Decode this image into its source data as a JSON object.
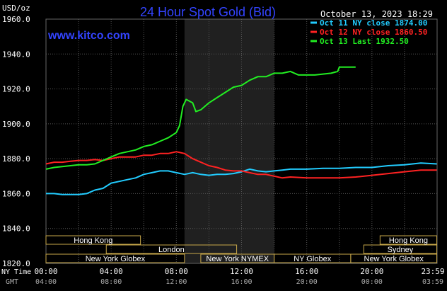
{
  "chart_data": {
    "type": "line",
    "title": "24 Hour Spot Gold (Bid)",
    "ylabel": "USD/oz",
    "timestamp": "October 13, 2023 18:29",
    "watermark": "www.kitco.com",
    "ylim": [
      1820,
      1960
    ],
    "y_ticks": [
      "1960.0",
      "1940.0",
      "1920.0",
      "1900.0",
      "1880.0",
      "1860.0",
      "1840.0",
      "1820.0"
    ],
    "x_labels_ny": [
      "00:00",
      "04:00",
      "08:00",
      "12:00",
      "16:00",
      "20:00",
      "23:59"
    ],
    "x_labels_gmt": [
      "04:00",
      "08:00",
      "12:00",
      "16:00",
      "20:00",
      "00:00",
      "03:59"
    ],
    "x_row_label_ny": "NY Time",
    "x_row_label_gmt": "GMT",
    "grid": true,
    "legend_position": "top-right",
    "highlight_hours": [
      8.5,
      14.0
    ],
    "sessions": [
      {
        "label": "Hong Kong",
        "start": 0.0,
        "end": 5.8,
        "row": 0
      },
      {
        "label": "London",
        "start": 3.7,
        "end": 11.7,
        "row": 1
      },
      {
        "label": "New York Globex",
        "start": 0.0,
        "end": 8.5,
        "row": 2
      },
      {
        "label": "New York NYMEX",
        "start": 9.5,
        "end": 14.0,
        "row": 2
      },
      {
        "label": "NY Globex",
        "start": 14.0,
        "end": 18.7,
        "row": 2
      },
      {
        "label": "Hong Kong",
        "start": 20.5,
        "end": 23.98,
        "row": 0
      },
      {
        "label": "Sydney",
        "start": 19.5,
        "end": 23.98,
        "row": 1
      },
      {
        "label": "New York Globex",
        "start": 18.7,
        "end": 23.98,
        "row": 2
      }
    ],
    "series": [
      {
        "name": "Oct 11 NY close 1874.00",
        "color": "#22ccff",
        "points": [
          [
            0,
            1860
          ],
          [
            0.5,
            1860
          ],
          [
            1,
            1859.5
          ],
          [
            1.5,
            1859.5
          ],
          [
            2,
            1859.5
          ],
          [
            2.5,
            1860
          ],
          [
            3,
            1862
          ],
          [
            3.5,
            1863
          ],
          [
            4,
            1866
          ],
          [
            4.5,
            1867
          ],
          [
            5,
            1868
          ],
          [
            5.5,
            1869
          ],
          [
            6,
            1871
          ],
          [
            6.5,
            1872
          ],
          [
            7,
            1873
          ],
          [
            7.5,
            1873
          ],
          [
            8,
            1872
          ],
          [
            8.5,
            1871
          ],
          [
            9,
            1872
          ],
          [
            9.5,
            1871
          ],
          [
            10,
            1870.5
          ],
          [
            10.5,
            1871
          ],
          [
            11,
            1871
          ],
          [
            11.5,
            1871.5
          ],
          [
            12,
            1872.5
          ],
          [
            12.5,
            1874
          ],
          [
            13,
            1873
          ],
          [
            13.5,
            1872.5
          ],
          [
            14,
            1873
          ],
          [
            14.5,
            1873.5
          ],
          [
            15,
            1874
          ],
          [
            16,
            1874
          ],
          [
            17,
            1874.5
          ],
          [
            18,
            1874.5
          ],
          [
            19,
            1875
          ],
          [
            20,
            1875
          ],
          [
            21,
            1876
          ],
          [
            22,
            1876.5
          ],
          [
            23,
            1877.5
          ],
          [
            23.98,
            1877
          ]
        ]
      },
      {
        "name": "Oct 12 NY close 1860.50",
        "color": "#ff2222",
        "points": [
          [
            0,
            1877
          ],
          [
            0.5,
            1878
          ],
          [
            1,
            1878
          ],
          [
            1.5,
            1878.5
          ],
          [
            2,
            1879
          ],
          [
            2.5,
            1879
          ],
          [
            3,
            1879.5
          ],
          [
            3.5,
            1879
          ],
          [
            4,
            1880
          ],
          [
            4.5,
            1881
          ],
          [
            5,
            1881
          ],
          [
            5.5,
            1881
          ],
          [
            6,
            1882
          ],
          [
            6.5,
            1882
          ],
          [
            7,
            1883
          ],
          [
            7.5,
            1883
          ],
          [
            8,
            1884
          ],
          [
            8.5,
            1883
          ],
          [
            9,
            1880
          ],
          [
            9.5,
            1878
          ],
          [
            10,
            1876
          ],
          [
            10.5,
            1875
          ],
          [
            11,
            1873.5
          ],
          [
            11.5,
            1873
          ],
          [
            12,
            1873
          ],
          [
            12.5,
            1872
          ],
          [
            13,
            1871
          ],
          [
            13.5,
            1871
          ],
          [
            14,
            1870
          ],
          [
            14.5,
            1869
          ],
          [
            15,
            1869.5
          ],
          [
            16,
            1869
          ],
          [
            17,
            1869
          ],
          [
            18,
            1869
          ],
          [
            19,
            1869.5
          ],
          [
            20,
            1870.5
          ],
          [
            21,
            1871.5
          ],
          [
            22,
            1872.5
          ],
          [
            23,
            1873.5
          ],
          [
            23.98,
            1873.5
          ]
        ]
      },
      {
        "name": "Oct 13 Last 1932.50",
        "color": "#22ee22",
        "points": [
          [
            0,
            1874
          ],
          [
            0.5,
            1875
          ],
          [
            1,
            1875.5
          ],
          [
            1.5,
            1876
          ],
          [
            2,
            1876.5
          ],
          [
            2.5,
            1876.5
          ],
          [
            3,
            1877
          ],
          [
            3.5,
            1879
          ],
          [
            4,
            1881
          ],
          [
            4.5,
            1883
          ],
          [
            5,
            1884
          ],
          [
            5.5,
            1885
          ],
          [
            6,
            1887
          ],
          [
            6.5,
            1888
          ],
          [
            7,
            1890
          ],
          [
            7.5,
            1892
          ],
          [
            8,
            1895
          ],
          [
            8.2,
            1899
          ],
          [
            8.4,
            1910
          ],
          [
            8.6,
            1914
          ],
          [
            9,
            1912
          ],
          [
            9.2,
            1907
          ],
          [
            9.5,
            1908
          ],
          [
            10,
            1912
          ],
          [
            10.5,
            1915
          ],
          [
            11,
            1918
          ],
          [
            11.5,
            1921
          ],
          [
            12,
            1922
          ],
          [
            12.5,
            1925
          ],
          [
            13,
            1927
          ],
          [
            13.5,
            1927
          ],
          [
            14,
            1929
          ],
          [
            14.5,
            1929
          ],
          [
            15,
            1930
          ],
          [
            15.5,
            1928
          ],
          [
            16,
            1928
          ],
          [
            16.5,
            1928
          ],
          [
            17,
            1928.5
          ],
          [
            17.5,
            1929
          ],
          [
            17.9,
            1930
          ],
          [
            18,
            1932.5
          ],
          [
            18.5,
            1932.5
          ],
          [
            19,
            1932.5
          ]
        ]
      }
    ]
  }
}
